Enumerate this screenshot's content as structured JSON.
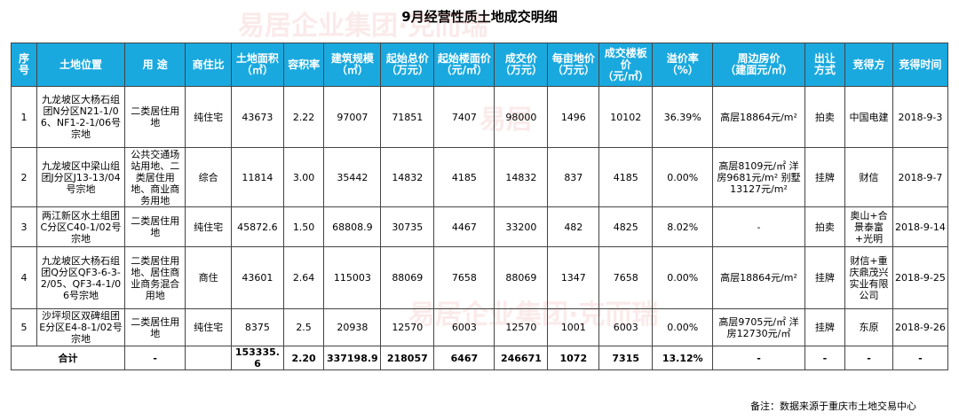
{
  "title": "9月经营性质土地成交明细",
  "table": {
    "headers": [
      {
        "line1": "序号",
        "line2": ""
      },
      {
        "line1": "土地位置",
        "line2": ""
      },
      {
        "line1": "用 途",
        "line2": ""
      },
      {
        "line1": "商住比",
        "line2": ""
      },
      {
        "line1": "土地面积",
        "line2": "（㎡）"
      },
      {
        "line1": "容积率",
        "line2": ""
      },
      {
        "line1": "建筑规模",
        "line2": "（㎡）"
      },
      {
        "line1": "起始总价",
        "line2": "（万元）"
      },
      {
        "line1": "起始楼面价",
        "line2": "（元/㎡）"
      },
      {
        "line1": "成交价",
        "line2": "（万元）"
      },
      {
        "line1": "每亩地价",
        "line2": "（万元）"
      },
      {
        "line1": "成交楼板价",
        "line2": "（元/㎡）"
      },
      {
        "line1": "溢价率",
        "line2": "（%）"
      },
      {
        "line1": "周边房价",
        "line2": "（建面元/㎡）"
      },
      {
        "line1": "出让",
        "line2": "方式"
      },
      {
        "line1": "竞得方",
        "line2": ""
      },
      {
        "line1": "竞得时间",
        "line2": ""
      }
    ],
    "rows": [
      {
        "no": "1",
        "location": "九龙坡区大杨石组团N分区N21-1/06、NF1-2-1/06号宗地",
        "use": "二类居住用地",
        "ratio": "纯住宅",
        "area": "43673",
        "far": "2.22",
        "scale": "97007",
        "start_total": "71851",
        "start_floor": "7407",
        "deal": "98000",
        "per_mu": "1496",
        "deal_floor": "10102",
        "premium": "36.39%",
        "nearby": "高层18864元/m²",
        "method": "拍卖",
        "winner": "中国电建",
        "date": "2018-9-3"
      },
      {
        "no": "2",
        "location": "九龙坡区中梁山组团J分区J13-13/04号宗地",
        "use": "公共交通场站用地、二类居住用地、商业商务用地",
        "ratio": "综合",
        "area": "11814",
        "far": "3.00",
        "scale": "35442",
        "start_total": "14832",
        "start_floor": "4185",
        "deal": "14832",
        "per_mu": "837",
        "deal_floor": "4185",
        "premium": "0.00%",
        "nearby": "高层8109元/㎡ 洋房9681元/m² 别墅13127元/m²",
        "method": "挂牌",
        "winner": "财信",
        "date": "2018-9-7"
      },
      {
        "no": "3",
        "location": "两江新区水土组团C分区C40-1/02号宗地",
        "use": "二类居住用地",
        "ratio": "纯住宅",
        "area": "45872.6",
        "far": "1.50",
        "scale": "68808.9",
        "start_total": "30735",
        "start_floor": "4467",
        "deal": "33200",
        "per_mu": "482",
        "deal_floor": "4825",
        "premium": "8.02%",
        "nearby": "-",
        "method": "拍卖",
        "winner": "奥山+合景泰富+光明",
        "date": "2018-9-14"
      },
      {
        "no": "4",
        "location": "九龙坡区大杨石组团Q分区QF3-6-3-2/05、QF3-4-1/06号宗地",
        "use": "二类居住用地、居住商业商务混合用地",
        "ratio": "商住",
        "area": "43601",
        "far": "2.64",
        "scale": "115003",
        "start_total": "88069",
        "start_floor": "7658",
        "deal": "88069",
        "per_mu": "1347",
        "deal_floor": "7658",
        "premium": "0.00%",
        "nearby": "高层18864元/m²",
        "method": "挂牌",
        "winner": "财信+重庆鼎茂兴实业有限公司",
        "date": "2018-9-25"
      },
      {
        "no": "5",
        "location": "沙坪坝区双碑组团E分区E4-8-1/02号宗地",
        "use": "二类居住用地",
        "ratio": "纯住宅",
        "area": "8375",
        "far": "2.5",
        "scale": "20938",
        "start_total": "12570",
        "start_floor": "6003",
        "deal": "12570",
        "per_mu": "1001",
        "deal_floor": "6003",
        "premium": "0.00%",
        "nearby": "高层9705元/㎡ 洋房12730元/㎡",
        "method": "挂牌",
        "winner": "东原",
        "date": "2018-9-26"
      }
    ],
    "total": {
      "label": "合计",
      "use": "-",
      "ratio": "",
      "area": "153335.6",
      "far": "2.20",
      "scale": "337198.9",
      "start_total": "218057",
      "start_floor": "6467",
      "deal": "246671",
      "per_mu": "1072",
      "deal_floor": "7315",
      "premium": "13.12%",
      "nearby": "-",
      "method": "-",
      "winner": "-",
      "date": "-"
    }
  },
  "note": "备注：数据来源于重庆市土地交易中心",
  "watermarks": [
    "易居",
    "易居企业集团",
    "企业集团",
    "克而瑞",
    "易居企业集团·克而瑞"
  ]
}
